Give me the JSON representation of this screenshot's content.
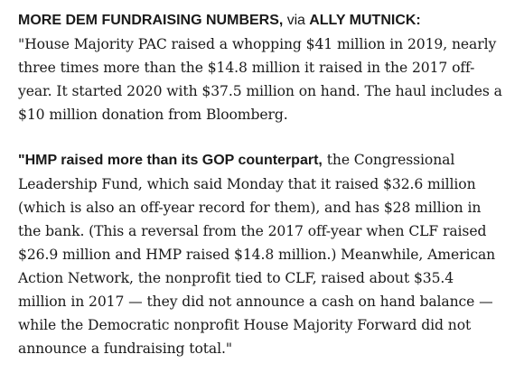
{
  "article": {
    "paragraph1": {
      "lead_bold": "MORE DEM FUNDRAISING NUMBERS,",
      "via_text": " via ",
      "source_bold": "ALLY MUTNICK:",
      "body": "\"House Majority PAC raised a whopping $41 million in 2019, nearly three times more than the $14.8 million it raised in the 2017 off-year. It started 2020 with $37.5 million on hand. The haul includes a $10 million donation from Bloomberg."
    },
    "paragraph2": {
      "lead_bold": "\"HMP raised more than its GOP counterpart,",
      "body": " the Congressional Leadership Fund, which said Monday that it raised $32.6 million (which is also an off-year record for them), and has $28 million in the bank. (This a reversal from the 2017 off-year when CLF raised $26.9 million and HMP raised $14.8 million.) Meanwhile, American Action Network, the nonprofit tied to CLF, raised about $35.4 million in 2017 — they did not announce a cash on hand balance — while the Democratic nonprofit House Majority Forward did not announce a fundraising total.\""
    }
  }
}
